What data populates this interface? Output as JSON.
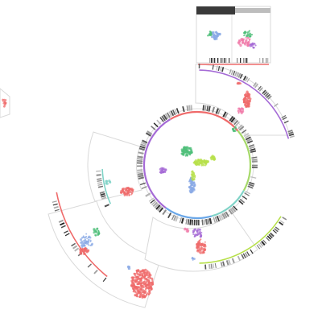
{
  "viz": {
    "center_panel": {
      "ring_colors": [
        "#ef6a6a",
        "#a6d96a",
        "#7fd3c7",
        "#6aa7e8",
        "#a56bd6"
      ],
      "clusters": [
        {
          "color": "#4fbf7a"
        },
        {
          "color": "#b7e04a"
        },
        {
          "color": "#8aa9e6"
        },
        {
          "color": "#a56bd6"
        }
      ]
    },
    "sector_panels": [
      {
        "id": "top-right",
        "ring_color": "#a56bd6"
      },
      {
        "id": "top-far",
        "ring_color": "#ef6a6a"
      },
      {
        "id": "left",
        "ring_color": "#7fd3c7"
      },
      {
        "id": "lower-left",
        "ring_color": "#ef6a6a"
      },
      {
        "id": "lower-right",
        "ring_color": "#a6d96a"
      }
    ],
    "palette": {
      "red": "#ef6a6a",
      "pink": "#f07aa8",
      "purple": "#a56bd6",
      "green": "#4fbf7a",
      "lime": "#b7e04a",
      "blue": "#8aa9e6",
      "cyan": "#7fd3c7"
    }
  }
}
